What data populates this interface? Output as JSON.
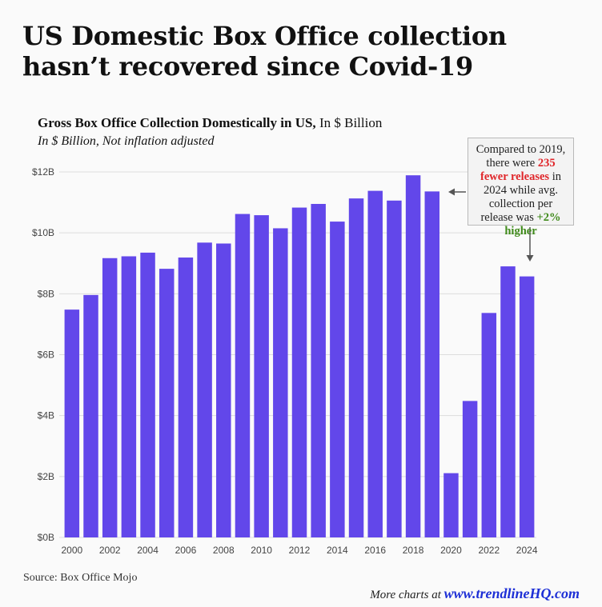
{
  "headline": "US Domestic Box Office collection hasn’t recovered since Covid-19",
  "subtitle": {
    "bold": "Gross Box Office Collection Domestically in US,",
    "rest": " In $ Billion"
  },
  "subnote": "In $ Billion, Not inflation adjusted",
  "annotation": {
    "line1": "Compared to 2019, there were ",
    "highlight1": "235 fewer releases",
    "line2": " in 2024 while avg. collection per release was ",
    "highlight2": "+2% higher"
  },
  "source": "Source: Box Office Mojo",
  "footer": {
    "prefix": "More charts at ",
    "url": "www.trendlineHQ.com"
  },
  "colors": {
    "bar": "#6247ea",
    "grid": "#dddddd",
    "red": "#e0262a",
    "green": "#3f8a1a"
  },
  "chart_data": {
    "type": "bar",
    "title": "Gross Box Office Collection Domestically in US, In $ Billion",
    "xlabel": "",
    "ylabel": "",
    "ylim": [
      0,
      12
    ],
    "yticks": [
      0,
      2,
      4,
      6,
      8,
      10,
      12
    ],
    "ytick_labels": [
      "$0B",
      "$2B",
      "$4B",
      "$6B",
      "$8B",
      "$10B",
      "$12B"
    ],
    "xtick_labels": [
      "2000",
      "2002",
      "2004",
      "2006",
      "2008",
      "2010",
      "2012",
      "2014",
      "2016",
      "2018",
      "2020",
      "2022",
      "2024"
    ],
    "categories": [
      "2000",
      "2001",
      "2002",
      "2003",
      "2004",
      "2005",
      "2006",
      "2007",
      "2008",
      "2009",
      "2010",
      "2011",
      "2012",
      "2013",
      "2014",
      "2015",
      "2016",
      "2017",
      "2018",
      "2019",
      "2020",
      "2021",
      "2022",
      "2023",
      "2024"
    ],
    "values": [
      7.48,
      7.96,
      9.17,
      9.23,
      9.35,
      8.82,
      9.19,
      9.68,
      9.65,
      10.62,
      10.58,
      10.15,
      10.83,
      10.95,
      10.37,
      11.13,
      11.38,
      11.06,
      11.89,
      11.36,
      2.11,
      4.48,
      7.37,
      8.9,
      8.57
    ],
    "grid": true,
    "legend": "none"
  }
}
